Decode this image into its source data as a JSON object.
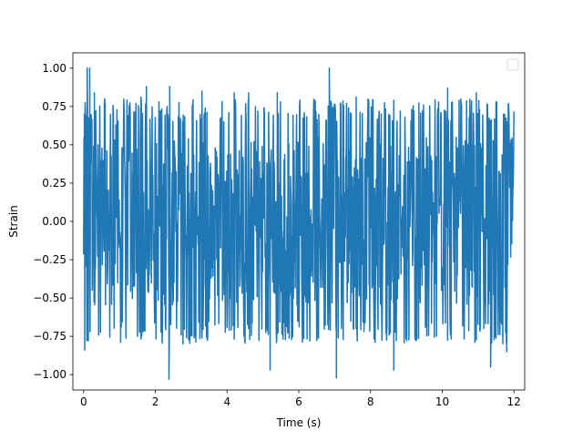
{
  "chart_data": {
    "type": "line",
    "xlabel": "Time (s)",
    "ylabel": "Strain",
    "xlim": [
      -0.3,
      12.3
    ],
    "ylim": [
      -1.1,
      1.1
    ],
    "xticks": [
      0,
      2,
      4,
      6,
      8,
      10,
      12
    ],
    "xtick_labels": [
      "0",
      "2",
      "4",
      "6",
      "8",
      "10",
      "12"
    ],
    "yticks": [
      -1.0,
      -0.75,
      -0.5,
      -0.25,
      0.0,
      0.25,
      0.5,
      0.75,
      1.0
    ],
    "ytick_labels": [
      "−1.00",
      "−0.75",
      "−0.50",
      "−0.25",
      "0.00",
      "0.25",
      "0.50",
      "0.75",
      "1.00"
    ],
    "grid": false,
    "legend": {
      "location": "upper right",
      "entries": []
    },
    "series": [
      {
        "color": "#1f77b4",
        "x_range": [
          0,
          12
        ],
        "peaks": [
          {
            "x": 0.02,
            "y": 0.7
          },
          {
            "x": 0.03,
            "y": -0.84
          },
          {
            "x": 0.1,
            "y": 1.0
          },
          {
            "x": 0.17,
            "y": 1.0
          },
          {
            "x": 0.3,
            "y": 0.84
          },
          {
            "x": 0.6,
            "y": 0.77
          },
          {
            "x": 0.9,
            "y": 0.63
          },
          {
            "x": 1.3,
            "y": 0.63
          },
          {
            "x": 1.6,
            "y": 0.81
          },
          {
            "x": 1.75,
            "y": 0.88
          },
          {
            "x": 2.4,
            "y": 0.88
          },
          {
            "x": 2.38,
            "y": -1.03
          },
          {
            "x": 3.3,
            "y": 0.85
          },
          {
            "x": 4.2,
            "y": 0.84
          },
          {
            "x": 4.6,
            "y": 0.84
          },
          {
            "x": 5.4,
            "y": 0.84
          },
          {
            "x": 5.2,
            "y": -0.97
          },
          {
            "x": 6.85,
            "y": 1.0
          },
          {
            "x": 7.05,
            "y": -1.02
          },
          {
            "x": 7.6,
            "y": 0.81
          },
          {
            "x": 8.65,
            "y": -0.97
          },
          {
            "x": 10.15,
            "y": 0.87
          },
          {
            "x": 10.95,
            "y": 0.84
          },
          {
            "x": 11.35,
            "y": -0.95
          },
          {
            "x": 11.5,
            "y": 0.78
          },
          {
            "x": 11.8,
            "y": 0.65
          },
          {
            "x": 11.8,
            "y": -0.85
          }
        ],
        "typical_envelope": [
          -0.55,
          0.55
        ],
        "samples": 1200
      }
    ]
  }
}
